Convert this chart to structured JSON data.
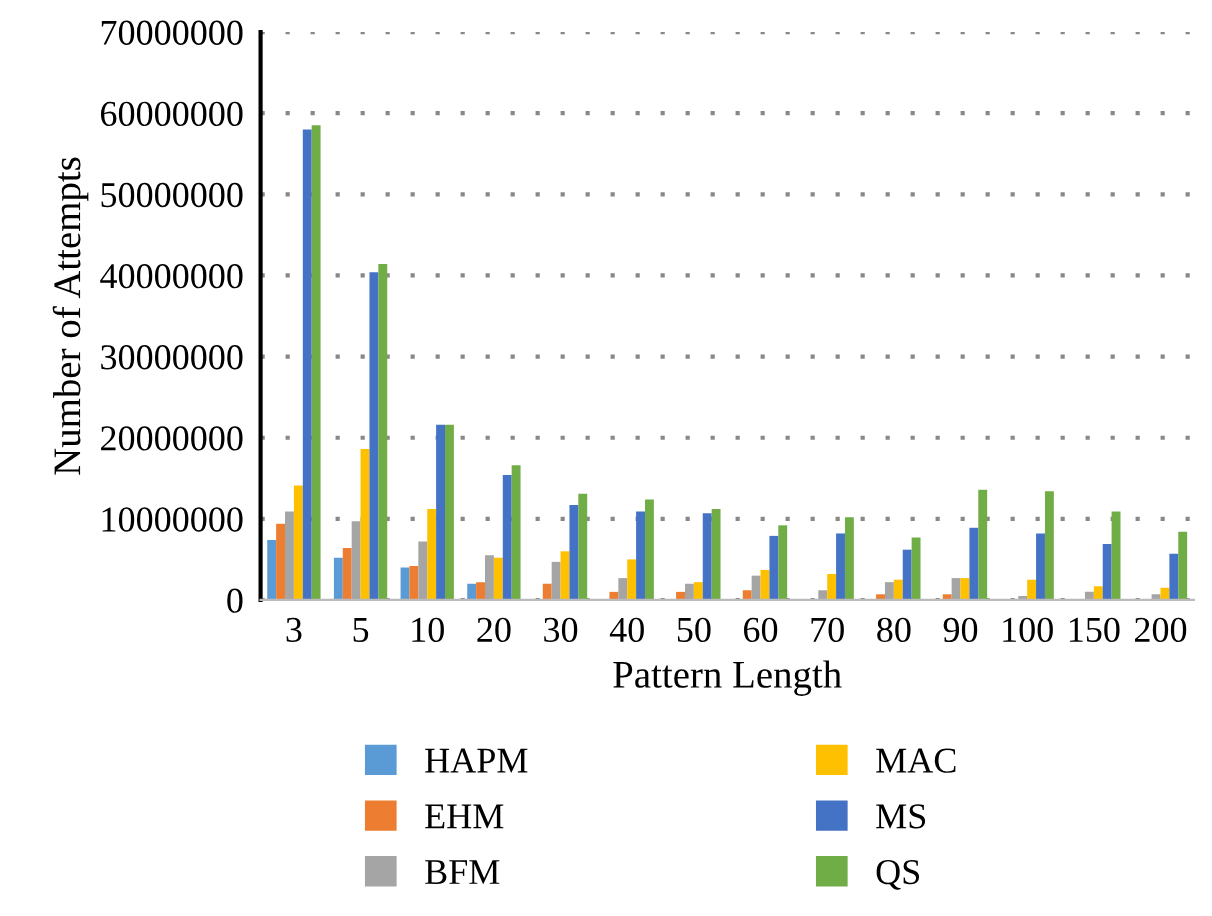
{
  "chart_data": {
    "type": "bar",
    "xlabel": "Pattern Length",
    "ylabel": "Number of Attempts",
    "categories": [
      "3",
      "5",
      "10",
      "20",
      "30",
      "40",
      "50",
      "60",
      "70",
      "80",
      "90",
      "100",
      "150",
      "200"
    ],
    "series": [
      {
        "name": "HAPM",
        "color": "#5b9bd5",
        "values": [
          7400000,
          5200000,
          4000000,
          2000000,
          0,
          0,
          0,
          0,
          0,
          0,
          0,
          0,
          0,
          0
        ]
      },
      {
        "name": "EHM",
        "color": "#ed7d31",
        "values": [
          9400000,
          6400000,
          4200000,
          2200000,
          2000000,
          1000000,
          1000000,
          1200000,
          0,
          700000,
          700000,
          0,
          0,
          0
        ]
      },
      {
        "name": "BFM",
        "color": "#a5a5a5",
        "values": [
          10900000,
          9700000,
          7200000,
          5500000,
          4700000,
          2700000,
          2000000,
          3000000,
          1200000,
          2200000,
          2700000,
          500000,
          1000000,
          700000
        ]
      },
      {
        "name": "MAC",
        "color": "#ffc000",
        "values": [
          14100000,
          18600000,
          11200000,
          5200000,
          6000000,
          5000000,
          2200000,
          3700000,
          3200000,
          2500000,
          2700000,
          2500000,
          1700000,
          1500000
        ]
      },
      {
        "name": "MS",
        "color": "#4472c4",
        "values": [
          58000000,
          40400000,
          21600000,
          15400000,
          11700000,
          10900000,
          10700000,
          7900000,
          8200000,
          6200000,
          8900000,
          8200000,
          6900000,
          5700000
        ]
      },
      {
        "name": "QS",
        "color": "#70ad47",
        "values": [
          58500000,
          41400000,
          21600000,
          16600000,
          13100000,
          12400000,
          11200000,
          9200000,
          10200000,
          7700000,
          13600000,
          13400000,
          10900000,
          8400000
        ]
      }
    ],
    "ylim": [
      0,
      70000000
    ],
    "yticks": [
      0,
      10000000,
      20000000,
      30000000,
      40000000,
      50000000,
      60000000,
      70000000
    ],
    "grid": "y",
    "legend": "bottom"
  }
}
